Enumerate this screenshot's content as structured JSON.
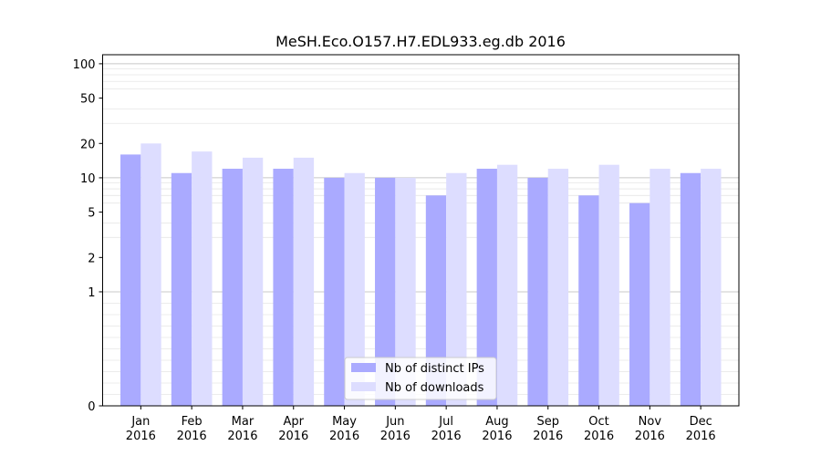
{
  "chart_data": {
    "type": "bar",
    "title": "MeSH.Eco.O157.H7.EDL933.eg.db 2016",
    "xlabel": "",
    "ylabel": "",
    "y_scale": "symlog",
    "ylim": [
      0,
      120
    ],
    "yticks": [
      0,
      1,
      2,
      5,
      10,
      20,
      50,
      100
    ],
    "ytick_labels": [
      "0",
      "1",
      "2",
      "5",
      "10",
      "20",
      "50",
      "100"
    ],
    "categories": [
      {
        "month": "Jan",
        "year": "2016"
      },
      {
        "month": "Feb",
        "year": "2016"
      },
      {
        "month": "Mar",
        "year": "2016"
      },
      {
        "month": "Apr",
        "year": "2016"
      },
      {
        "month": "May",
        "year": "2016"
      },
      {
        "month": "Jun",
        "year": "2016"
      },
      {
        "month": "Jul",
        "year": "2016"
      },
      {
        "month": "Aug",
        "year": "2016"
      },
      {
        "month": "Sep",
        "year": "2016"
      },
      {
        "month": "Oct",
        "year": "2016"
      },
      {
        "month": "Nov",
        "year": "2016"
      },
      {
        "month": "Dec",
        "year": "2016"
      }
    ],
    "series": [
      {
        "name": "Nb of distinct IPs",
        "color": "#aaaaff",
        "values": [
          16,
          11,
          12,
          12,
          10,
          10,
          7,
          12,
          10,
          7,
          6,
          11
        ]
      },
      {
        "name": "Nb of downloads",
        "color": "#ddddff",
        "values": [
          20,
          17,
          15,
          15,
          11,
          10,
          11,
          13,
          12,
          13,
          12,
          12
        ]
      }
    ],
    "grid": true,
    "legend_position": "lower-center"
  }
}
